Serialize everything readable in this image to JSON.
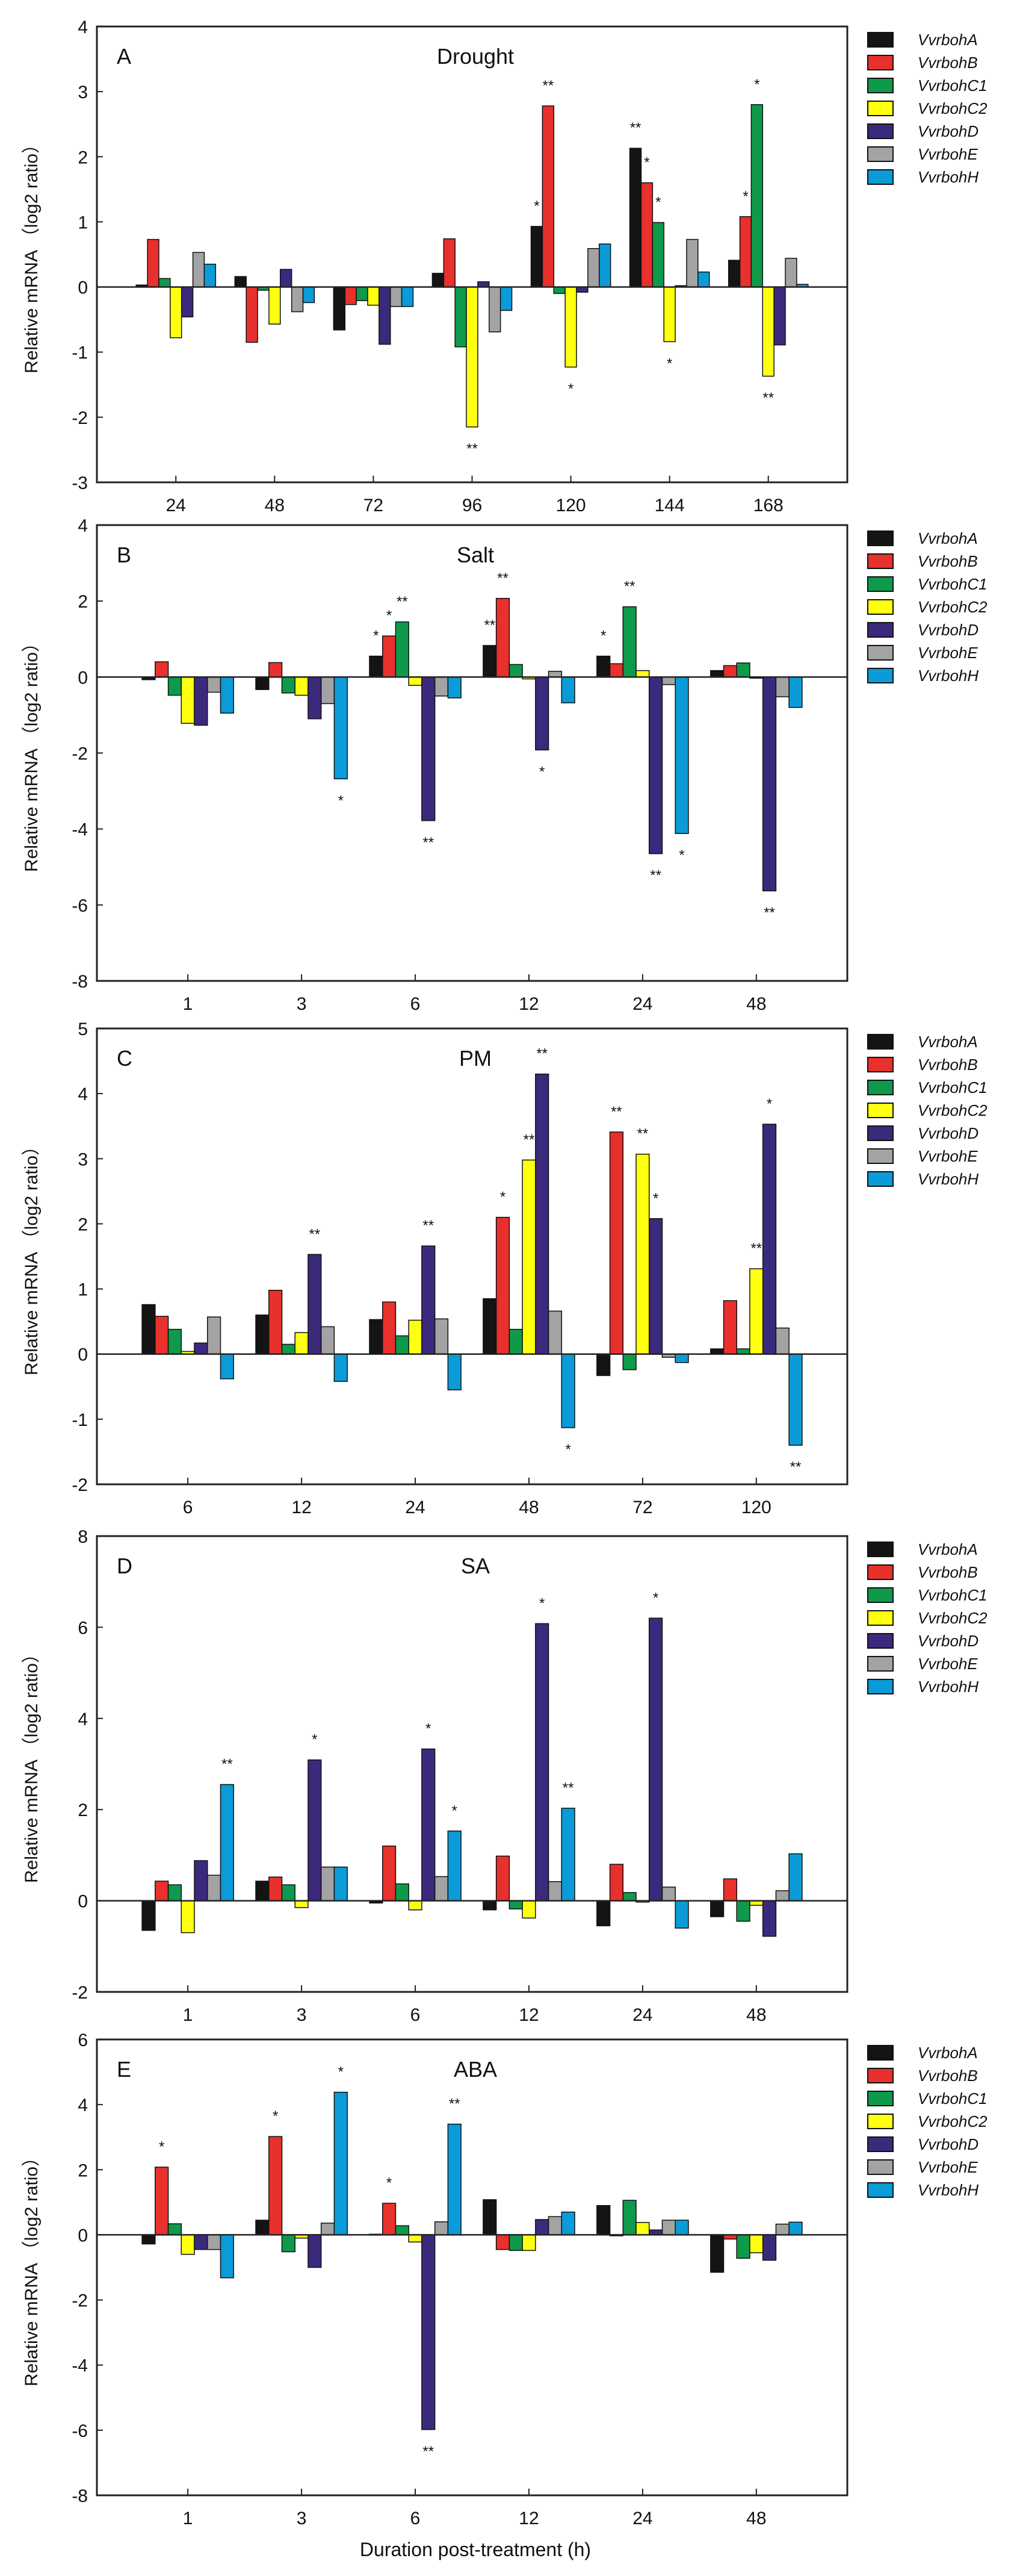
{
  "colors": {
    "VvrbohA": "#141414",
    "VvrbohB": "#e8302c",
    "VvrbohC1": "#0e9a4a",
    "VvrbohC2": "#ffff10",
    "VvrbohD": "#3b2a7c",
    "VvrbohE": "#a3a3a3",
    "VvrbohH": "#0b9bd8"
  },
  "xlabel": "Duration post-treatment (h)",
  "chart_data": [
    {
      "type": "bar",
      "panel_letter": "A",
      "title": "Drought",
      "ylabel": "Relative mRNA （log2 ratio）",
      "ylim": [
        -3,
        4
      ],
      "yticks": [
        "-3",
        "-2",
        "-1",
        "0",
        "1",
        "2",
        "3",
        "4"
      ],
      "categories": [
        "24",
        "48",
        "72",
        "96",
        "120",
        "144",
        "168"
      ],
      "series": [
        {
          "name": "VvrbohA",
          "values": [
            0.03,
            0.16,
            -0.66,
            0.21,
            0.93,
            2.13,
            0.41
          ]
        },
        {
          "name": "VvrbohB",
          "values": [
            0.73,
            -0.85,
            -0.27,
            0.74,
            2.78,
            1.6,
            1.08
          ]
        },
        {
          "name": "VvrbohC1",
          "values": [
            0.13,
            -0.05,
            -0.21,
            -0.92,
            -0.1,
            0.99,
            2.8
          ]
        },
        {
          "name": "VvrbohC2",
          "values": [
            -0.78,
            -0.57,
            -0.28,
            -2.15,
            -1.23,
            -0.84,
            -1.37
          ]
        },
        {
          "name": "VvrbohD",
          "values": [
            -0.46,
            0.27,
            -0.88,
            0.08,
            -0.08,
            0.02,
            -0.89
          ]
        },
        {
          "name": "VvrbohE",
          "values": [
            0.53,
            -0.38,
            -0.3,
            -0.69,
            0.59,
            0.73,
            0.44
          ]
        },
        {
          "name": "VvrbohH",
          "values": [
            0.35,
            -0.24,
            -0.3,
            -0.36,
            0.66,
            0.23,
            0.04
          ]
        }
      ],
      "significance": [
        {
          "category": "96",
          "series": "VvrbohC2",
          "mark": "**"
        },
        {
          "category": "120",
          "series": "VvrbohA",
          "mark": "*"
        },
        {
          "category": "120",
          "series": "VvrbohB",
          "mark": "**"
        },
        {
          "category": "120",
          "series": "VvrbohC2",
          "mark": "*"
        },
        {
          "category": "144",
          "series": "VvrbohA",
          "mark": "**"
        },
        {
          "category": "144",
          "series": "VvrbohB",
          "mark": "*"
        },
        {
          "category": "144",
          "series": "VvrbohC1",
          "mark": "*"
        },
        {
          "category": "144",
          "series": "VvrbohC2",
          "mark": "*"
        },
        {
          "category": "168",
          "series": "VvrbohB",
          "mark": "*"
        },
        {
          "category": "168",
          "series": "VvrbohC1",
          "mark": "*"
        },
        {
          "category": "168",
          "series": "VvrbohC2",
          "mark": "**"
        }
      ]
    },
    {
      "type": "bar",
      "panel_letter": "B",
      "title": "Salt",
      "ylabel": "Relative mRNA （log2 ratio）",
      "ylim": [
        -8,
        4
      ],
      "yticks": [
        "-8",
        "-6",
        "-4",
        "-2",
        "0",
        "2",
        "4"
      ],
      "categories": [
        "1",
        "3",
        "6",
        "12",
        "24",
        "48"
      ],
      "series": [
        {
          "name": "VvrbohA",
          "values": [
            -0.07,
            -0.33,
            0.55,
            0.83,
            0.55,
            0.17
          ]
        },
        {
          "name": "VvrbohB",
          "values": [
            0.4,
            0.38,
            1.08,
            2.07,
            0.35,
            0.3
          ]
        },
        {
          "name": "VvrbohC1",
          "values": [
            -0.48,
            -0.42,
            1.45,
            0.33,
            1.85,
            0.37
          ]
        },
        {
          "name": "VvrbohC2",
          "values": [
            -1.22,
            -0.48,
            -0.22,
            -0.05,
            0.17,
            -0.03
          ]
        },
        {
          "name": "VvrbohD",
          "values": [
            -1.27,
            -1.1,
            -3.78,
            -1.92,
            -4.65,
            -5.63
          ]
        },
        {
          "name": "VvrbohE",
          "values": [
            -0.4,
            -0.7,
            -0.5,
            0.15,
            -0.2,
            -0.52
          ]
        },
        {
          "name": "VvrbohH",
          "values": [
            -0.95,
            -2.68,
            -0.55,
            -0.68,
            -4.12,
            -0.8
          ]
        }
      ],
      "significance": [
        {
          "category": "3",
          "series": "VvrbohH",
          "mark": "*"
        },
        {
          "category": "6",
          "series": "VvrbohA",
          "mark": "*"
        },
        {
          "category": "6",
          "series": "VvrbohB",
          "mark": "*"
        },
        {
          "category": "6",
          "series": "VvrbohC1",
          "mark": "**"
        },
        {
          "category": "6",
          "series": "VvrbohD",
          "mark": "**"
        },
        {
          "category": "12",
          "series": "VvrbohA",
          "mark": "**"
        },
        {
          "category": "12",
          "series": "VvrbohB",
          "mark": "**"
        },
        {
          "category": "12",
          "series": "VvrbohD",
          "mark": "*"
        },
        {
          "category": "24",
          "series": "VvrbohA",
          "mark": "*"
        },
        {
          "category": "24",
          "series": "VvrbohC1",
          "mark": "**"
        },
        {
          "category": "24",
          "series": "VvrbohD",
          "mark": "**"
        },
        {
          "category": "24",
          "series": "VvrbohH",
          "mark": "*"
        },
        {
          "category": "48",
          "series": "VvrbohD",
          "mark": "**"
        }
      ]
    },
    {
      "type": "bar",
      "panel_letter": "C",
      "title": "PM",
      "ylabel": "Relative mRNA （log2 ratio）",
      "ylim": [
        -2,
        5
      ],
      "yticks": [
        "-2",
        "-1",
        "0",
        "1",
        "2",
        "3",
        "4",
        "5"
      ],
      "categories": [
        "6",
        "12",
        "24",
        "48",
        "72",
        "120"
      ],
      "series": [
        {
          "name": "VvrbohA",
          "values": [
            0.76,
            0.6,
            0.53,
            0.85,
            -0.33,
            0.08
          ]
        },
        {
          "name": "VvrbohB",
          "values": [
            0.58,
            0.98,
            0.8,
            2.1,
            3.41,
            0.82
          ]
        },
        {
          "name": "VvrbohC1",
          "values": [
            0.38,
            0.15,
            0.28,
            0.38,
            -0.24,
            0.08
          ]
        },
        {
          "name": "VvrbohC2",
          "values": [
            0.04,
            0.33,
            0.52,
            2.98,
            3.07,
            1.31
          ]
        },
        {
          "name": "VvrbohD",
          "values": [
            0.17,
            1.53,
            1.66,
            4.3,
            2.08,
            3.53
          ]
        },
        {
          "name": "VvrbohE",
          "values": [
            0.57,
            0.42,
            0.54,
            0.66,
            -0.05,
            0.4
          ]
        },
        {
          "name": "VvrbohH",
          "values": [
            -0.38,
            -0.42,
            -0.55,
            -1.13,
            -0.13,
            -1.4
          ]
        }
      ],
      "significance": [
        {
          "category": "12",
          "series": "VvrbohD",
          "mark": "**"
        },
        {
          "category": "24",
          "series": "VvrbohD",
          "mark": "**"
        },
        {
          "category": "48",
          "series": "VvrbohB",
          "mark": "*"
        },
        {
          "category": "48",
          "series": "VvrbohC2",
          "mark": "**"
        },
        {
          "category": "48",
          "series": "VvrbohD",
          "mark": "**"
        },
        {
          "category": "48",
          "series": "VvrbohH",
          "mark": "*"
        },
        {
          "category": "72",
          "series": "VvrbohB",
          "mark": "**"
        },
        {
          "category": "72",
          "series": "VvrbohC2",
          "mark": "**"
        },
        {
          "category": "72",
          "series": "VvrbohD",
          "mark": "*"
        },
        {
          "category": "120",
          "series": "VvrbohC2",
          "mark": "**"
        },
        {
          "category": "120",
          "series": "VvrbohD",
          "mark": "*"
        },
        {
          "category": "120",
          "series": "VvrbohH",
          "mark": "**"
        }
      ]
    },
    {
      "type": "bar",
      "panel_letter": "D",
      "title": "SA",
      "ylabel": "Relative mRNA （log2 ratio）",
      "ylim": [
        -2,
        8
      ],
      "yticks": [
        "-2",
        "0",
        "2",
        "4",
        "6",
        "8"
      ],
      "categories": [
        "1",
        "3",
        "6",
        "12",
        "24",
        "48"
      ],
      "series": [
        {
          "name": "VvrbohA",
          "values": [
            -0.65,
            0.43,
            -0.05,
            -0.2,
            -0.55,
            -0.35
          ]
        },
        {
          "name": "VvrbohB",
          "values": [
            0.43,
            0.52,
            1.2,
            0.98,
            0.8,
            0.48
          ]
        },
        {
          "name": "VvrbohC1",
          "values": [
            0.35,
            0.35,
            0.37,
            -0.18,
            0.18,
            -0.45
          ]
        },
        {
          "name": "VvrbohC2",
          "values": [
            -0.7,
            -0.15,
            -0.2,
            -0.38,
            -0.03,
            -0.1
          ]
        },
        {
          "name": "VvrbohD",
          "values": [
            0.88,
            3.09,
            3.33,
            6.08,
            6.2,
            -0.78
          ]
        },
        {
          "name": "VvrbohE",
          "values": [
            0.56,
            0.74,
            0.53,
            0.42,
            0.3,
            0.22
          ]
        },
        {
          "name": "VvrbohH",
          "values": [
            2.55,
            0.74,
            1.53,
            2.03,
            -0.6,
            1.03
          ]
        }
      ],
      "significance": [
        {
          "category": "1",
          "series": "VvrbohH",
          "mark": "**"
        },
        {
          "category": "3",
          "series": "VvrbohD",
          "mark": "*"
        },
        {
          "category": "6",
          "series": "VvrbohD",
          "mark": "*"
        },
        {
          "category": "6",
          "series": "VvrbohH",
          "mark": "*"
        },
        {
          "category": "12",
          "series": "VvrbohD",
          "mark": "*"
        },
        {
          "category": "12",
          "series": "VvrbohH",
          "mark": "**"
        },
        {
          "category": "24",
          "series": "VvrbohD",
          "mark": "*"
        }
      ]
    },
    {
      "type": "bar",
      "panel_letter": "E",
      "title": "ABA",
      "ylabel": "Relative mRNA （log2 ratio）",
      "ylim": [
        -8,
        6
      ],
      "yticks": [
        "-8",
        "-6",
        "-4",
        "-2",
        "0",
        "2",
        "4",
        "6"
      ],
      "categories": [
        "1",
        "3",
        "6",
        "12",
        "24",
        "48"
      ],
      "series": [
        {
          "name": "VvrbohA",
          "values": [
            -0.28,
            0.45,
            0.02,
            1.08,
            0.9,
            -1.15
          ]
        },
        {
          "name": "VvrbohB",
          "values": [
            2.08,
            3.02,
            0.97,
            -0.45,
            -0.03,
            -0.13
          ]
        },
        {
          "name": "VvrbohC1",
          "values": [
            0.34,
            -0.52,
            0.28,
            -0.48,
            1.06,
            -0.72
          ]
        },
        {
          "name": "VvrbohC2",
          "values": [
            -0.6,
            -0.1,
            -0.22,
            -0.48,
            0.38,
            -0.55
          ]
        },
        {
          "name": "VvrbohD",
          "values": [
            -0.45,
            -1.0,
            -5.98,
            0.47,
            0.15,
            -0.78
          ]
        },
        {
          "name": "VvrbohE",
          "values": [
            -0.45,
            0.36,
            0.4,
            0.56,
            0.45,
            0.33
          ]
        },
        {
          "name": "VvrbohH",
          "values": [
            -1.32,
            4.38,
            3.4,
            0.7,
            0.45,
            0.39
          ]
        }
      ],
      "significance": [
        {
          "category": "1",
          "series": "VvrbohB",
          "mark": "*"
        },
        {
          "category": "3",
          "series": "VvrbohB",
          "mark": "*"
        },
        {
          "category": "3",
          "series": "VvrbohH",
          "mark": "*"
        },
        {
          "category": "6",
          "series": "VvrbohB",
          "mark": "*"
        },
        {
          "category": "6",
          "series": "VvrbohD",
          "mark": "**"
        },
        {
          "category": "6",
          "series": "VvrbohH",
          "mark": "**"
        }
      ]
    }
  ]
}
